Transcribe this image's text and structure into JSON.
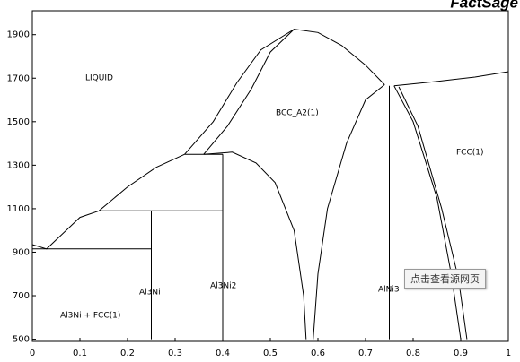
{
  "chart_data": {
    "type": "line",
    "title": "FactSage",
    "xlim": [
      0,
      1
    ],
    "xticks": [
      0,
      0.1,
      0.2,
      0.3,
      0.4,
      0.5,
      0.6,
      0.7,
      0.8,
      0.9,
      1
    ],
    "ylim": [
      490,
      2010
    ],
    "yticks": [
      500,
      700,
      900,
      1100,
      1300,
      1500,
      1700,
      1900
    ],
    "series": [
      {
        "color": "#000000",
        "x": [
          0,
          0.03,
          0.1,
          0.14,
          0.2,
          0.26,
          0.32
        ],
        "values": [
          935,
          915,
          1060,
          1090,
          1200,
          1290,
          1350
        ]
      },
      {
        "color": "#000000",
        "x": [
          0.32,
          0.38,
          0.43,
          0.48,
          0.55,
          0.6,
          0.65,
          0.7,
          0.74
        ],
        "values": [
          1350,
          1500,
          1680,
          1830,
          1925,
          1910,
          1850,
          1760,
          1670
        ]
      },
      {
        "color": "#000000",
        "x": [
          0.36,
          0.41,
          0.46,
          0.5,
          0.55
        ],
        "values": [
          1350,
          1480,
          1650,
          1820,
          1925
        ]
      },
      {
        "color": "#000000",
        "x": [
          0.36,
          0.42,
          0.47,
          0.51,
          0.55,
          0.57,
          0.575
        ],
        "values": [
          1350,
          1360,
          1310,
          1220,
          1000,
          700,
          500
        ]
      },
      {
        "color": "#000000",
        "x": [
          0.59,
          0.6,
          0.62,
          0.66,
          0.7,
          0.74
        ],
        "values": [
          500,
          800,
          1100,
          1400,
          1600,
          1670
        ]
      },
      {
        "color": "#000000",
        "x": [
          0.76,
          0.8,
          0.85,
          0.88,
          0.9
        ],
        "values": [
          1665,
          1500,
          1150,
          800,
          500
        ]
      },
      {
        "color": "#000000",
        "x": [
          0.77,
          0.81,
          0.86,
          0.895,
          0.913
        ],
        "values": [
          1660,
          1480,
          1100,
          780,
          500
        ]
      },
      {
        "color": "#000000",
        "x": [
          0.76,
          0.85,
          0.93,
          1
        ],
        "values": [
          1665,
          1685,
          1705,
          1730
        ]
      },
      {
        "color": "#000000",
        "x": [
          0,
          0.25
        ],
        "values": [
          915,
          915
        ]
      },
      {
        "color": "#000000",
        "x": [
          0.14,
          0.4
        ],
        "values": [
          1090,
          1090
        ]
      },
      {
        "color": "#000000",
        "x": [
          0.32,
          0.4
        ],
        "values": [
          1350,
          1350
        ]
      },
      {
        "color": "#000000",
        "x": [
          0.25,
          0.25
        ],
        "values": [
          500,
          1090
        ]
      },
      {
        "color": "#000000",
        "x": [
          0.4,
          0.4
        ],
        "values": [
          500,
          1350
        ]
      },
      {
        "color": "#000000",
        "x": [
          0.75,
          0.75
        ],
        "values": [
          500,
          1665
        ]
      }
    ],
    "annotations": [
      "LIQUID",
      "BCC_A2(1)",
      "FCC(1)",
      "Al3Ni",
      "Al3Ni2",
      "AlNi3",
      "Al3Ni + FCC(1)"
    ]
  },
  "overlay": {
    "button": "点击查看源网页"
  }
}
